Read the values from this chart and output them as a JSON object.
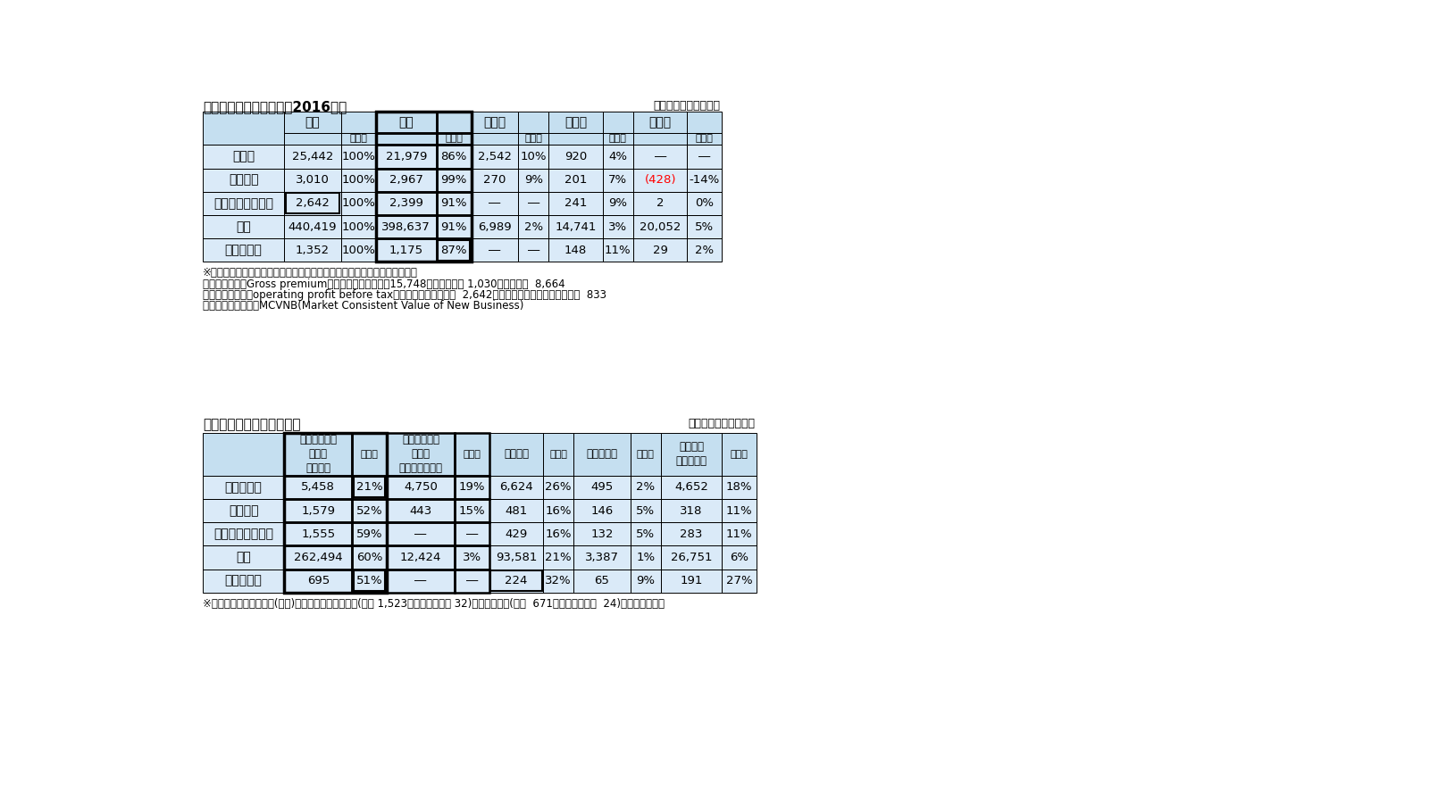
{
  "title1": "保険事業の地域別内訳（2016年）",
  "unit1": "（単位：百万ポンド）",
  "title2": "うち　欧州の主要国別内訳",
  "unit2": "（単位：百万ポンド）",
  "note1_lines": [
    "※　数値は損害保険を含んだものである。全体数値の内訳は、以下の通り。",
    "　　保険料は「Gross premium」で、うち　生命保険15,748、（医療保険 1,030、損害保険  8,664",
    "　　営業利益は「operating profit before tax」で、うち　生命保険  2,642、損害保険（医療保険を含む）  833",
    "　　新契約価値は、MCVNB(Market Consistent Value of New Business)"
  ],
  "note2": "※「英国＆アイルランド(生保)」の内訳は、営業利益(英国 1,523、アイルランド 32)、新契約価値(英国  671　アイルランド  24)となっている。",
  "header_bg": "#c5dff0",
  "row_bg": "#daeaf8",
  "table1": {
    "row_headers": [
      "保険料",
      "営業利益",
      "営業利益（生保）",
      "資産",
      "新契約価値"
    ],
    "data": [
      [
        "25,442",
        "100%",
        "21,979",
        "86%",
        "2,542",
        "10%",
        "920",
        "4%",
        "―",
        "―"
      ],
      [
        "3,010",
        "100%",
        "2,967",
        "99%",
        "270",
        "9%",
        "201",
        "7%",
        "(428)",
        "-14%"
      ],
      [
        "2,642",
        "100%",
        "2,399",
        "91%",
        "―",
        "―",
        "241",
        "9%",
        "2",
        "0%"
      ],
      [
        "440,419",
        "100%",
        "398,637",
        "91%",
        "6,989",
        "2%",
        "14,741",
        "3%",
        "20,052",
        "5%"
      ],
      [
        "1,352",
        "100%",
        "1,175",
        "87%",
        "―",
        "―",
        "148",
        "11%",
        "29",
        "2%"
      ]
    ]
  },
  "table2": {
    "row_headers": [
      "収入保険料",
      "営業利益",
      "営業利益（生保）",
      "資産",
      "新契約価値"
    ],
    "data": [
      [
        "5,458",
        "21%",
        "4,750",
        "19%",
        "6,624",
        "26%",
        "495",
        "2%",
        "4,652",
        "18%"
      ],
      [
        "1,579",
        "52%",
        "443",
        "15%",
        "481",
        "16%",
        "146",
        "5%",
        "318",
        "11%"
      ],
      [
        "1,555",
        "59%",
        "―",
        "―",
        "429",
        "16%",
        "132",
        "5%",
        "283",
        "11%"
      ],
      [
        "262,494",
        "60%",
        "12,424",
        "3%",
        "93,581",
        "21%",
        "3,387",
        "1%",
        "26,751",
        "6%"
      ],
      [
        "695",
        "51%",
        "―",
        "―",
        "224",
        "32%",
        "65",
        "9%",
        "191",
        "27%"
      ]
    ]
  }
}
